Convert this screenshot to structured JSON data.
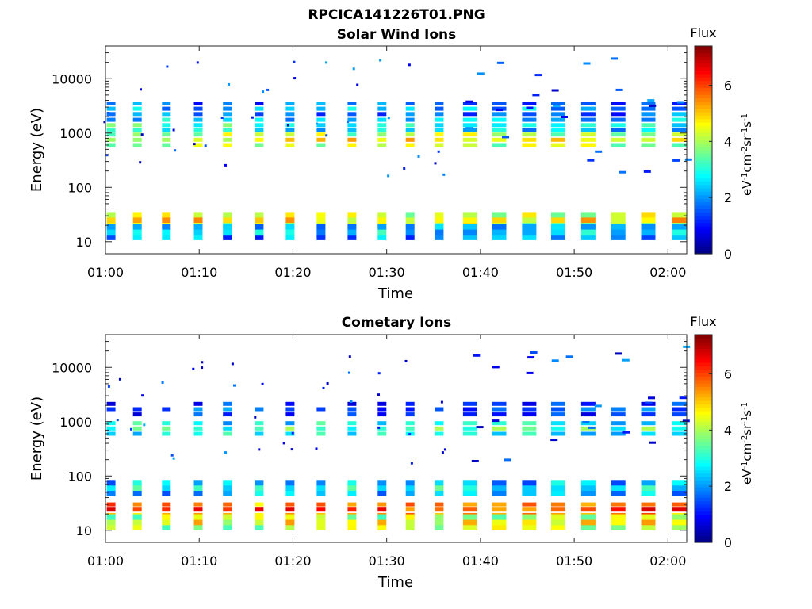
{
  "figure": {
    "title": "RPCICA141226T01.PNG"
  },
  "colorbar": {
    "label": "Flux",
    "unit_text": "eV-1cm-2sr-1s-1",
    "ticks": [
      "0",
      "2",
      "4",
      "6"
    ],
    "tick_values": [
      0,
      2,
      4,
      6
    ],
    "range": [
      0,
      7.4
    ],
    "colormap": "jet"
  },
  "chart_data": [
    {
      "type": "heatmap",
      "title": "Solar Wind Ions",
      "xlabel": "Time",
      "ylabel": "Energy (eV)",
      "x_tick_labels": [
        "01:00",
        "01:10",
        "01:20",
        "01:30",
        "01:40",
        "01:50",
        "02:00"
      ],
      "x_tick_minutes": [
        0,
        10,
        20,
        30,
        40,
        50,
        60
      ],
      "xlim_minutes": [
        0,
        62
      ],
      "y_tick_labels": [
        "10",
        "100",
        "1000",
        "10000"
      ],
      "y_tick_values": [
        10,
        100,
        1000,
        10000
      ],
      "ylim": [
        6,
        40000
      ],
      "y_scale": "log",
      "bands": [
        {
          "energy": 750,
          "flux": 4.6
        },
        {
          "energy": 1400,
          "flux": 3.0
        },
        {
          "energy": 2800,
          "flux": 2.2
        },
        {
          "energy": 25,
          "flux": 4.9
        },
        {
          "energy": 15,
          "flux": 2.5
        }
      ],
      "sweep_times_minutes": [
        0.6,
        3.4,
        6.5,
        9.9,
        13.0,
        16.4,
        19.7,
        23.0,
        26.3,
        29.5,
        32.5,
        35.6,
        38.9,
        42.0,
        45.2,
        48.3,
        51.5,
        54.7,
        57.9,
        61.2
      ]
    },
    {
      "type": "heatmap",
      "title": "Cometary Ions",
      "xlabel": "Time",
      "ylabel": "Energy (eV)",
      "x_tick_labels": [
        "01:00",
        "01:10",
        "01:20",
        "01:30",
        "01:40",
        "01:50",
        "02:00"
      ],
      "x_tick_minutes": [
        0,
        10,
        20,
        30,
        40,
        50,
        60
      ],
      "xlim_minutes": [
        0,
        62
      ],
      "y_tick_labels": [
        "10",
        "100",
        "1000",
        "10000"
      ],
      "y_tick_values": [
        10,
        100,
        1000,
        10000
      ],
      "ylim": [
        6,
        40000
      ],
      "y_scale": "log",
      "bands": [
        {
          "energy": 750,
          "flux": 3.3
        },
        {
          "energy": 1700,
          "flux": 1.6
        },
        {
          "energy": 24,
          "flux": 6.0
        },
        {
          "energy": 14,
          "flux": 4.6
        },
        {
          "energy": 60,
          "flux": 2.8
        }
      ],
      "sweep_times_minutes": [
        0.6,
        3.4,
        6.5,
        9.9,
        13.0,
        16.4,
        19.7,
        23.0,
        26.3,
        29.5,
        32.5,
        35.6,
        38.9,
        42.0,
        45.2,
        48.3,
        51.5,
        54.7,
        57.9,
        61.2
      ]
    }
  ]
}
